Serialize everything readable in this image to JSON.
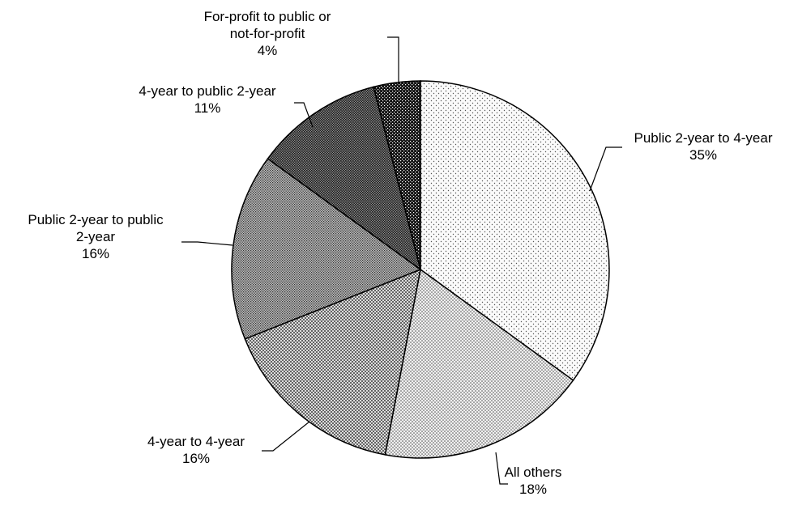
{
  "chart_data": {
    "type": "pie",
    "title": "",
    "unit": "%",
    "start": "12 o'clock",
    "direction": "clockwise",
    "legend": "none (direct labels with leader lines)",
    "slices": [
      {
        "label_lines": [
          "Public 2-year to 4-year"
        ],
        "value_text": "35%",
        "value": 35,
        "fill_color": "#f2f2f2",
        "pattern": "light-dots"
      },
      {
        "label_lines": [
          "All others"
        ],
        "value_text": "18%",
        "value": 18,
        "fill_color": "#e3e3e3",
        "pattern": "fine-dots"
      },
      {
        "label_lines": [
          "4-year to 4-year"
        ],
        "value_text": "16%",
        "value": 16,
        "fill_color": "#c8c8c8",
        "pattern": "medium-dots"
      },
      {
        "label_lines": [
          "Public 2-year to public",
          "2-year"
        ],
        "value_text": "16%",
        "value": 16,
        "fill_color": "#a8a8a8",
        "pattern": "crosshatch-medium"
      },
      {
        "label_lines": [
          "4-year to public 2-year"
        ],
        "value_text": "11%",
        "value": 11,
        "fill_color": "#6e6e6e",
        "pattern": "crosshatch-dense"
      },
      {
        "label_lines": [
          "For-profit to public or",
          "not-for-profit"
        ],
        "value_text": "4%",
        "value": 4,
        "fill_color": "#2a2a2a",
        "pattern": "dark-check"
      }
    ]
  }
}
